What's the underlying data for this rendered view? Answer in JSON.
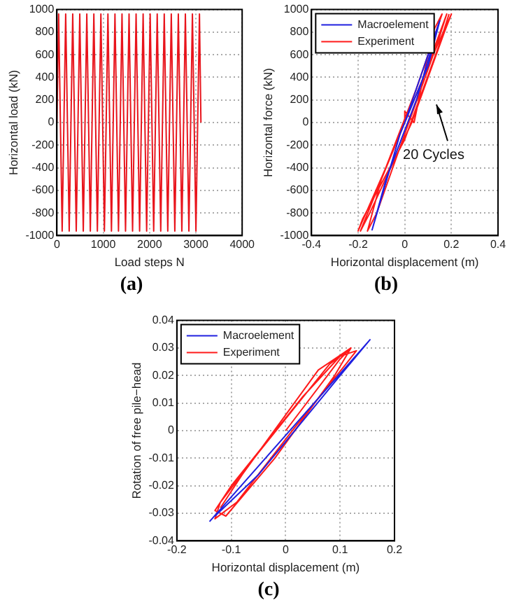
{
  "chart_data": [
    {
      "type": "line",
      "title": "(a)",
      "xlabel": "Load steps N",
      "ylabel": "Horizontal load (kN)",
      "xlim": [
        0,
        4000
      ],
      "xticks": [
        0,
        1000,
        2000,
        3000,
        4000
      ],
      "ylim": [
        -1000,
        1000
      ],
      "yticks": [
        -1000,
        -800,
        -600,
        -400,
        -200,
        0,
        200,
        400,
        600,
        800,
        1000
      ],
      "grid": true,
      "legend": false,
      "series": [
        {
          "color": "#e8141c",
          "x": [
            0,
            38,
            114,
            190,
            266,
            342,
            418,
            494,
            570,
            646,
            722,
            798,
            874,
            950,
            1026,
            1102,
            1178,
            1254,
            1330,
            1406,
            1482,
            1558,
            1634,
            1710,
            1786,
            1862,
            1938,
            2014,
            2090,
            2166,
            2242,
            2318,
            2394,
            2470,
            2546,
            2622,
            2698,
            2774,
            2850,
            2926,
            3002,
            3078,
            3110
          ],
          "values": [
            0,
            960,
            -960,
            960,
            -960,
            960,
            -960,
            960,
            -960,
            960,
            -960,
            960,
            -960,
            960,
            -960,
            960,
            -960,
            960,
            -960,
            960,
            -960,
            960,
            -960,
            960,
            -960,
            960,
            -960,
            960,
            -960,
            960,
            -960,
            960,
            -960,
            960,
            -960,
            960,
            -960,
            960,
            -960,
            960,
            -960,
            960,
            0
          ]
        }
      ]
    },
    {
      "type": "line",
      "title": "(b)",
      "xlabel": "Horizontal displacement (m)",
      "ylabel": "Horizontal force (kN)",
      "xlim": [
        -0.4,
        0.4
      ],
      "xticks": [
        -0.4,
        -0.2,
        0,
        0.2,
        0.4
      ],
      "ylim": [
        -1000,
        1000
      ],
      "yticks": [
        -1000,
        -800,
        -600,
        -400,
        -200,
        0,
        200,
        400,
        600,
        800,
        1000
      ],
      "grid": true,
      "legend": "top left",
      "annotations": [
        "20 Cycles"
      ],
      "series": [
        {
          "name": "Macroelement",
          "color": "#2020e0",
          "x": [
            0,
            0.15,
            0.1,
            -0.02,
            -0.14,
            -0.08,
            0.05,
            0.15
          ],
          "values": [
            0,
            900,
            500,
            -100,
            -950,
            -500,
            200,
            900
          ]
        },
        {
          "name": "Experiment",
          "color": "#ff1a1a",
          "x": [
            0,
            0,
            0.04,
            0.12,
            0.16,
            0.05,
            -0.1,
            -0.16,
            -0.12,
            0,
            0.14,
            0.18,
            0.08,
            -0.08,
            -0.19,
            -0.15,
            0.03,
            0.17,
            0.2,
            0.1,
            -0.06,
            -0.2,
            -0.18,
            0,
            0.15,
            0.19
          ],
          "values": [
            0,
            100,
            0,
            800,
            960,
            300,
            -500,
            -960,
            -800,
            -100,
            700,
            960,
            400,
            -400,
            -960,
            -800,
            0,
            800,
            960,
            500,
            -300,
            -960,
            -850,
            -150,
            700,
            960
          ]
        }
      ]
    },
    {
      "type": "line",
      "title": "(c)",
      "xlabel": "Horizontal displacement (m)",
      "ylabel": "Rotation of free pile−head",
      "xlim": [
        -0.2,
        0.2
      ],
      "xticks": [
        -0.2,
        -0.1,
        0,
        0.1,
        0.2
      ],
      "ylim": [
        -0.04,
        0.04
      ],
      "yticks": [
        -0.04,
        -0.03,
        -0.02,
        -0.01,
        0,
        0.01,
        0.02,
        0.03,
        0.04
      ],
      "grid": true,
      "legend": "top left",
      "series": [
        {
          "name": "Macroelement",
          "color": "#2020e0",
          "x": [
            -0.14,
            0.155,
            0.1,
            -0.05,
            -0.13
          ],
          "values": [
            -0.033,
            0.033,
            0.02,
            -0.016,
            -0.031
          ]
        },
        {
          "name": "Experiment",
          "color": "#ff1a1a",
          "x": [
            0,
            0.1,
            0.12,
            0.08,
            -0.05,
            -0.12,
            -0.13,
            -0.09,
            0.02,
            0.11,
            0.13,
            0.1,
            0.03,
            -0.1,
            -0.13,
            -0.11,
            -0.02,
            0.09,
            0.12,
            0.06,
            -0.08,
            -0.12
          ],
          "values": [
            0,
            0.026,
            0.03,
            0.024,
            -0.008,
            -0.026,
            -0.032,
            -0.026,
            0.002,
            0.024,
            0.029,
            0.027,
            0.012,
            -0.02,
            -0.029,
            -0.031,
            -0.01,
            0.02,
            0.03,
            0.022,
            -0.016,
            -0.028
          ]
        }
      ]
    }
  ]
}
